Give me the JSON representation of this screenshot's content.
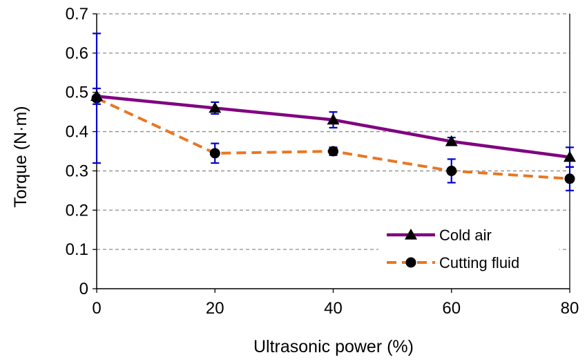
{
  "chart_data": {
    "type": "line",
    "title": "",
    "xlabel": "Ultrasonic power (%)",
    "ylabel": "Torque (N·m)",
    "xlim": [
      0,
      80
    ],
    "ylim": [
      0,
      0.7
    ],
    "x_ticks": [
      0,
      20,
      40,
      60,
      80
    ],
    "y_ticks": [
      0,
      0.1,
      0.2,
      0.3,
      0.4,
      0.5,
      0.6,
      0.7
    ],
    "x_tick_labels": [
      "0",
      "20",
      "40",
      "60",
      "80"
    ],
    "y_tick_labels": [
      "0",
      "0.1",
      "0.2",
      "0.3",
      "0.4",
      "0.5",
      "0.6",
      "0.7"
    ],
    "grid": "horizontal dashed",
    "legend_position": "bottom-right",
    "series": [
      {
        "name": "Cold air",
        "color": "#800080",
        "line_style": "solid",
        "marker": "triangle",
        "x": [
          0,
          20,
          40,
          60,
          80
        ],
        "values": [
          0.49,
          0.46,
          0.43,
          0.375,
          0.335
        ],
        "error": [
          0.02,
          0.015,
          0.02,
          0.01,
          0.025
        ]
      },
      {
        "name": "Cutting fluid",
        "color": "#E87722",
        "line_style": "dashed",
        "marker": "circle",
        "x": [
          0,
          20,
          40,
          60,
          80
        ],
        "values": [
          0.485,
          0.345,
          0.35,
          0.3,
          0.28
        ],
        "error": [
          0.165,
          0.025,
          0.01,
          0.03,
          0.03
        ]
      }
    ],
    "error_bar_color": "#0000CC"
  }
}
